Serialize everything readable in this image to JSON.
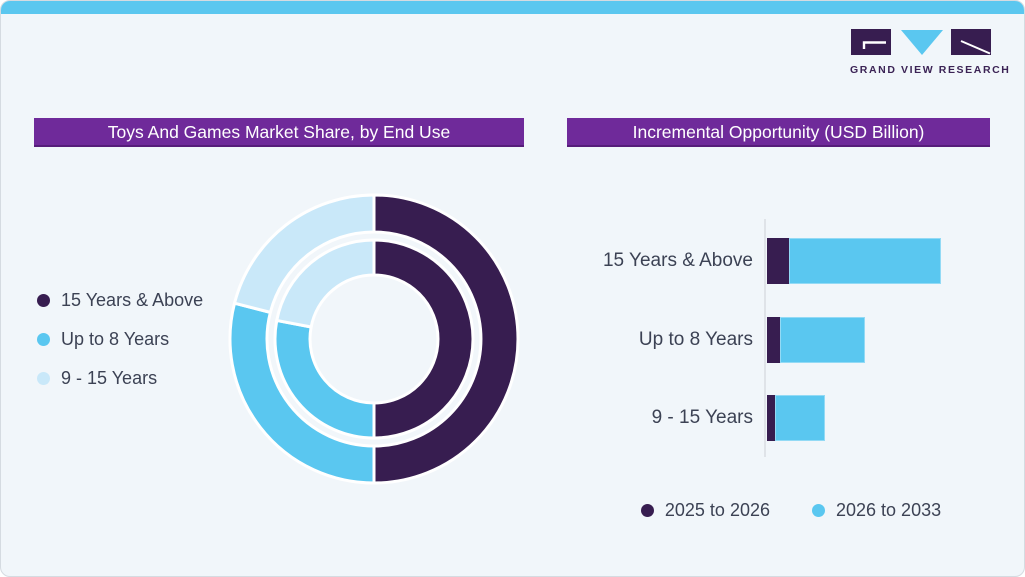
{
  "logo": {
    "text": "GRAND VIEW RESEARCH"
  },
  "colors": {
    "background": "#f1f6fa",
    "top_strip": "#5bc7ef",
    "card_border": "#d5dbe1",
    "banner_purple": "#6f2a9a",
    "dark_purple": "#371d50",
    "light_blue": "#5ac7f0",
    "pale_blue": "#c9e8f9",
    "text": "#3c4254",
    "axis_line": "#dfe3e8"
  },
  "chart_data": [
    {
      "type": "pie",
      "variant": "double-ring donut",
      "title": "Toys And Games Market Share, by End Use",
      "categories": [
        "15 Years & Above",
        "Up to 8 Years",
        "9 - 15 Years"
      ],
      "colors": [
        "#371d50",
        "#5ac7f0",
        "#c9e8f9"
      ],
      "rings": [
        {
          "name": "outer",
          "values_pct": [
            50,
            29,
            21
          ]
        },
        {
          "name": "inner",
          "values_pct": [
            50,
            28,
            22
          ]
        }
      ],
      "legend_position": "left",
      "note": "percentages estimated from arc angles; no numeric labels shown in image"
    },
    {
      "type": "bar",
      "variant": "horizontal stacked",
      "title": "Incremental Opportunity (USD Billion)",
      "categories": [
        "15 Years & Above",
        "Up to 8 Years",
        "9 - 15 Years"
      ],
      "series": [
        {
          "name": "2025 to 2026",
          "color": "#371d50",
          "values": [
            22,
            13,
            8
          ]
        },
        {
          "name": "2026 to 2033",
          "color": "#5ac7f0",
          "values": [
            152,
            85,
            50
          ]
        }
      ],
      "xlim": [
        0,
        180
      ],
      "value_scale": "relative units (axis has no tick labels in image)",
      "legend_position": "bottom",
      "grid": false
    }
  ]
}
